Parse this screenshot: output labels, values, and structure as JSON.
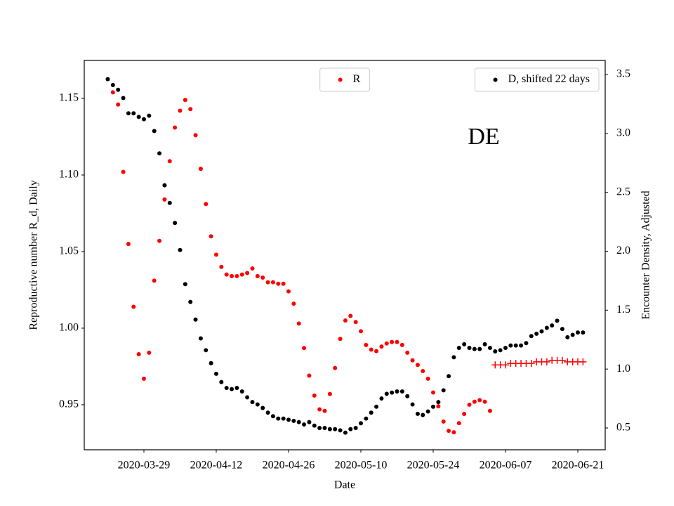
{
  "chart_data": {
    "type": "scatter",
    "annotation": "DE",
    "xlabel": "Date",
    "ylabel": "Reproductive number R_d, Daily",
    "ylabel_color": "red",
    "y2label": "Encounter Density, Adjusted",
    "xlim": [
      "2020-03-17T10:48",
      "2020-06-26T07:12"
    ],
    "xticks": [
      "2020-03-29",
      "2020-04-12",
      "2020-04-26",
      "2020-05-10",
      "2020-05-24",
      "2020-06-07",
      "2020-06-21"
    ],
    "ylim": [
      0.9206,
      1.1748
    ],
    "yticks": [
      0.95,
      {
        "value": 1,
        "label": "1.00"
      },
      1.05,
      {
        "value": 1.1,
        "label": "1.10"
      },
      1.15
    ],
    "y2lim": [
      0.315,
      3.619
    ],
    "y2ticks": [
      0.5,
      {
        "value": 1,
        "label": "1.0"
      },
      1.5,
      {
        "value": 2,
        "label": "2.0"
      },
      2.5,
      {
        "value": 3,
        "label": "3.0"
      },
      3.5
    ],
    "series": [
      {
        "name": "R",
        "color": "red",
        "marker": "o",
        "legend_loc": "upper center",
        "x": [
          "2020-03-23",
          "2020-03-24",
          "2020-03-25",
          "2020-03-26",
          "2020-03-27",
          "2020-03-28",
          "2020-03-29",
          "2020-03-30",
          "2020-03-31",
          "2020-04-01",
          "2020-04-02",
          "2020-04-03",
          "2020-04-04",
          "2020-04-05",
          "2020-04-06",
          "2020-04-07",
          "2020-04-08",
          "2020-04-09",
          "2020-04-10",
          "2020-04-11",
          "2020-04-12",
          "2020-04-13",
          "2020-04-14",
          "2020-04-15",
          "2020-04-16",
          "2020-04-17",
          "2020-04-18",
          "2020-04-19",
          "2020-04-20",
          "2020-04-21",
          "2020-04-22",
          "2020-04-23",
          "2020-04-24",
          "2020-04-25",
          "2020-04-26",
          "2020-04-27",
          "2020-04-28",
          "2020-04-29",
          "2020-04-30",
          "2020-05-01",
          "2020-05-02",
          "2020-05-03",
          "2020-05-04",
          "2020-05-05",
          "2020-05-06",
          "2020-05-07",
          "2020-05-08",
          "2020-05-09",
          "2020-05-10",
          "2020-05-11",
          "2020-05-12",
          "2020-05-13",
          "2020-05-14",
          "2020-05-15",
          "2020-05-16",
          "2020-05-17",
          "2020-05-18",
          "2020-05-19",
          "2020-05-20",
          "2020-05-21",
          "2020-05-22",
          "2020-05-23",
          "2020-05-24",
          "2020-05-25",
          "2020-05-26",
          "2020-05-27",
          "2020-05-28",
          "2020-05-29",
          "2020-05-30",
          "2020-05-31",
          "2020-06-01",
          "2020-06-02",
          "2020-06-03",
          "2020-06-04"
        ],
        "values": [
          1.154,
          1.146,
          1.102,
          1.055,
          1.014,
          0.983,
          0.967,
          0.984,
          1.031,
          1.057,
          1.084,
          1.109,
          1.131,
          1.142,
          1.149,
          1.143,
          1.126,
          1.104,
          1.081,
          1.06,
          1.048,
          1.04,
          1.035,
          1.034,
          1.034,
          1.035,
          1.036,
          1.039,
          1.034,
          1.033,
          1.03,
          1.03,
          1.029,
          1.029,
          1.024,
          1.016,
          1.003,
          0.987,
          0.969,
          0.956,
          0.947,
          0.946,
          0.957,
          0.974,
          0.993,
          1.005,
          1.008,
          1.004,
          0.998,
          0.989,
          0.986,
          0.985,
          0.988,
          0.99,
          0.991,
          0.991,
          0.989,
          0.984,
          0.979,
          0.976,
          0.972,
          0.967,
          0.958,
          0.949,
          0.939,
          0.933,
          0.932,
          0.938,
          0.944,
          0.95,
          0.952,
          0.953,
          0.952,
          0.946
        ]
      },
      {
        "color": "red",
        "marker": "+",
        "x": [
          "2020-06-05",
          "2020-06-06",
          "2020-06-07",
          "2020-06-08",
          "2020-06-09",
          "2020-06-10",
          "2020-06-11",
          "2020-06-12",
          "2020-06-13",
          "2020-06-14",
          "2020-06-15",
          "2020-06-16",
          "2020-06-17",
          "2020-06-18",
          "2020-06-19",
          "2020-06-20",
          "2020-06-21",
          "2020-06-22"
        ],
        "values": [
          0.976,
          0.976,
          0.976,
          0.977,
          0.977,
          0.977,
          0.977,
          0.977,
          0.978,
          0.978,
          0.978,
          0.979,
          0.979,
          0.979,
          0.978,
          0.978,
          0.978,
          0.978
        ]
      },
      {
        "name": "D, shifted 22 days",
        "color": "black",
        "marker": "o",
        "axis": "y2",
        "legend_loc": "upper right",
        "x": [
          "2020-03-22",
          "2020-03-23",
          "2020-03-24",
          "2020-03-25",
          "2020-03-26",
          "2020-03-27",
          "2020-03-28",
          "2020-03-29",
          "2020-03-30",
          "2020-03-31",
          "2020-04-01",
          "2020-04-02",
          "2020-04-03",
          "2020-04-04",
          "2020-04-05",
          "2020-04-06",
          "2020-04-07",
          "2020-04-08",
          "2020-04-09",
          "2020-04-10",
          "2020-04-11",
          "2020-04-12",
          "2020-04-13",
          "2020-04-14",
          "2020-04-15",
          "2020-04-16",
          "2020-04-17",
          "2020-04-18",
          "2020-04-19",
          "2020-04-20",
          "2020-04-21",
          "2020-04-22",
          "2020-04-23",
          "2020-04-24",
          "2020-04-25",
          "2020-04-26",
          "2020-04-27",
          "2020-04-28",
          "2020-04-29",
          "2020-04-30",
          "2020-05-01",
          "2020-05-02",
          "2020-05-03",
          "2020-05-04",
          "2020-05-05",
          "2020-05-06",
          "2020-05-07",
          "2020-05-08",
          "2020-05-09",
          "2020-05-10",
          "2020-05-11",
          "2020-05-12",
          "2020-05-13",
          "2020-05-14",
          "2020-05-15",
          "2020-05-16",
          "2020-05-17",
          "2020-05-18",
          "2020-05-19",
          "2020-05-20",
          "2020-05-21",
          "2020-05-22",
          "2020-05-23",
          "2020-05-24",
          "2020-05-25",
          "2020-05-26",
          "2020-05-27",
          "2020-05-28",
          "2020-05-29",
          "2020-05-30",
          "2020-05-31",
          "2020-06-01",
          "2020-06-02",
          "2020-06-03",
          "2020-06-04",
          "2020-06-05",
          "2020-06-06",
          "2020-06-07",
          "2020-06-08",
          "2020-06-09",
          "2020-06-10",
          "2020-06-11",
          "2020-06-12",
          "2020-06-13",
          "2020-06-14",
          "2020-06-15",
          "2020-06-16",
          "2020-06-17",
          "2020-06-18",
          "2020-06-19",
          "2020-06-20",
          "2020-06-21",
          "2020-06-22"
        ],
        "values": [
          3.46,
          3.41,
          3.37,
          3.3,
          3.17,
          3.17,
          3.14,
          3.12,
          3.15,
          3.02,
          2.83,
          2.56,
          2.41,
          2.24,
          2.01,
          1.72,
          1.57,
          1.42,
          1.26,
          1.16,
          1.05,
          0.96,
          0.89,
          0.84,
          0.83,
          0.84,
          0.81,
          0.76,
          0.72,
          0.7,
          0.67,
          0.63,
          0.6,
          0.58,
          0.58,
          0.57,
          0.56,
          0.55,
          0.53,
          0.55,
          0.52,
          0.5,
          0.5,
          0.49,
          0.49,
          0.48,
          0.46,
          0.49,
          0.5,
          0.54,
          0.58,
          0.63,
          0.68,
          0.75,
          0.79,
          0.8,
          0.81,
          0.81,
          0.77,
          0.7,
          0.62,
          0.61,
          0.64,
          0.68,
          0.72,
          0.82,
          0.94,
          1.1,
          1.18,
          1.21,
          1.18,
          1.17,
          1.17,
          1.21,
          1.18,
          1.15,
          1.16,
          1.18,
          1.2,
          1.2,
          1.2,
          1.22,
          1.28,
          1.3,
          1.32,
          1.35,
          1.37,
          1.41,
          1.34,
          1.27,
          1.29,
          1.31,
          1.31
        ]
      }
    ]
  }
}
